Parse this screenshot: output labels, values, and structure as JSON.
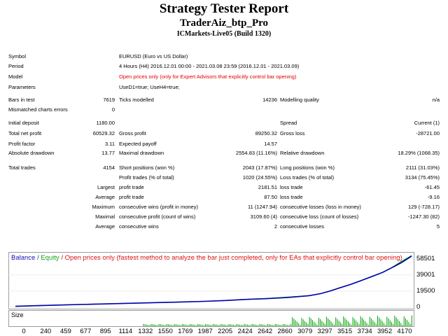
{
  "header": {
    "title": "Strategy Tester Report",
    "robot": "TraderAiz_btp_Pro",
    "server": "ICMarkets-Live05 (Build 1320)"
  },
  "info": {
    "symbol_label": "Symbol",
    "symbol": "EURUSD (Euro vs US Dollar)",
    "period_label": "Period",
    "period": "4 Hours (H4) 2016.12.01 00:00 - 2021.03.08 23:59 (2016.12.01 - 2021.03.09)",
    "model_label": "Model",
    "model": "Open prices only (only for Expert Advisors that explicitly control bar opening)",
    "params_label": "Parameters",
    "params": "UseD1=true; UseH4=true;"
  },
  "stats": {
    "bars_label": "Bars in test",
    "bars": "7619",
    "ticks_label": "Ticks modelled",
    "ticks": "14236",
    "quality_label": "Modelling quality",
    "quality": "n/a",
    "mismatch_label": "Mismatched charts errors",
    "mismatch": "0",
    "deposit_label": "Initial deposit",
    "deposit": "1180.00",
    "spread_label": "Spread",
    "spread": "Current (1)",
    "netprofit_label": "Total net profit",
    "netprofit": "60529.32",
    "grossprofit_label": "Gross profit",
    "grossprofit": "89250.32",
    "grossloss_label": "Gross loss",
    "grossloss": "-28721.00",
    "pf_label": "Profit factor",
    "pf": "3.11",
    "payoff_label": "Expected payoff",
    "payoff": "14.57",
    "absdd_label": "Absolute drawdown",
    "absdd": "13.77",
    "maxdd_label": "Maximal drawdown",
    "maxdd": "2554.83 (11.16%)",
    "reldd_label": "Relative drawdown",
    "reldd": "18.29% (1068.35)",
    "trades_label": "Total trades",
    "trades": "4154",
    "short_label": "Short positions (won %)",
    "short": "2043 (17.87%)",
    "long_label": "Long positions (won %)",
    "long": "2111 (31.03%)",
    "profit_trades_label": "Profit trades (% of total)",
    "profit_trades": "1020 (24.55%)",
    "loss_trades_label": "Loss trades (% of total)",
    "loss_trades": "3134 (75.45%)",
    "largest_label": "Largest",
    "lg_profit_label": "profit trade",
    "lg_profit": "2181.51",
    "lg_loss_label": "loss trade",
    "lg_loss": "-61.45",
    "average_label": "Average",
    "av_profit_label": "profit trade",
    "av_profit": "87.50",
    "av_loss_label": "loss trade",
    "av_loss": "-9.16",
    "maximum_label": "Maximum",
    "mx_wins_label": "consecutive wins (profit in money)",
    "mx_wins": "11 (1247.94)",
    "mx_losses_label": "consecutive losses (loss in money)",
    "mx_losses": "129 (-728.17)",
    "maximal_label": "Maximal",
    "ml_profit_label": "consecutive profit (count of wins)",
    "ml_profit": "3109.60 (4)",
    "ml_loss_label": "consecutive loss (count of losses)",
    "ml_loss": "-1247.30 (82)",
    "average2_label": "Average",
    "avc_wins_label": "consecutive wins",
    "avc_wins": "2",
    "avc_losses_label": "consecutive losses",
    "avc_losses": "5"
  },
  "chart_legend": {
    "balance": "Balance",
    "sep": "/",
    "equity": "Equity",
    "rest": "/ Open prices only (fastest method to analyze the bar just completed, only for EAs that explicitly control bar opening)"
  },
  "size_label": "Size",
  "colors": {
    "balance": "#0000b0",
    "equity": "#00a000",
    "size": "#00a000",
    "warning": "#e00000"
  },
  "chart_data": {
    "type": "line",
    "y_ticks": [
      "58501",
      "39001",
      "19500",
      "0"
    ],
    "y_tick_values": [
      58501,
      39001,
      19500,
      0
    ],
    "x_ticks": [
      "0",
      "240",
      "459",
      "677",
      "895",
      "1114",
      "1332",
      "1550",
      "1769",
      "1987",
      "2205",
      "2424",
      "2642",
      "2860",
      "3079",
      "3297",
      "3515",
      "3734",
      "3952",
      "4170"
    ],
    "x_tick_values": [
      0,
      240,
      459,
      677,
      895,
      1114,
      1332,
      1550,
      1769,
      1987,
      2205,
      2424,
      2642,
      2860,
      3079,
      3297,
      3515,
      3734,
      3952,
      4170
    ],
    "xlim": [
      0,
      4154
    ],
    "ylim": [
      0,
      65000
    ],
    "series": [
      {
        "name": "Balance",
        "x": [
          0,
          240,
          459,
          677,
          895,
          1114,
          1332,
          1550,
          1769,
          1987,
          2205,
          2424,
          2642,
          2860,
          3079,
          3200,
          3297,
          3400,
          3515,
          3620,
          3734,
          3850,
          3952,
          4050,
          4154
        ],
        "y": [
          1180,
          2000,
          2700,
          3400,
          4000,
          4600,
          5200,
          5800,
          6500,
          7200,
          8200,
          9500,
          10500,
          11800,
          14000,
          16500,
          19500,
          23500,
          27500,
          32000,
          37000,
          42000,
          48000,
          54000,
          61700
        ]
      },
      {
        "name": "Equity",
        "x": [
          0,
          240,
          459,
          677,
          895,
          1114,
          1332,
          1550,
          1769,
          1987,
          2205,
          2424,
          2642,
          2860,
          3079,
          3200,
          3297,
          3400,
          3515,
          3620,
          3734,
          3850,
          3952,
          4050,
          4154
        ],
        "y": [
          1180,
          2050,
          2750,
          3450,
          4050,
          4650,
          5250,
          5850,
          6550,
          7250,
          8300,
          9600,
          10700,
          12300,
          14100,
          16600,
          19700,
          23700,
          27700,
          32200,
          37200,
          42300,
          48300,
          55500,
          62300
        ]
      }
    ]
  }
}
